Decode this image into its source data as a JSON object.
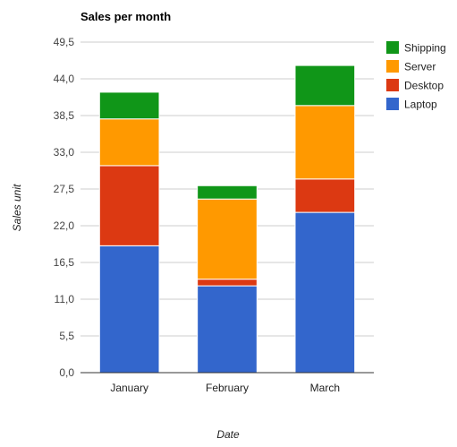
{
  "chart_data": {
    "type": "bar",
    "stacked": true,
    "title": "Sales per month",
    "xlabel": "Date",
    "ylabel": "Sales unit",
    "categories": [
      "January",
      "February",
      "March"
    ],
    "ylim": [
      0,
      49.5
    ],
    "yticks": [
      "0,0",
      "5,5",
      "11,0",
      "16,5",
      "22,0",
      "27,5",
      "33,0",
      "38,5",
      "44,0",
      "49,5"
    ],
    "ytick_values": [
      0,
      5.5,
      11,
      16.5,
      22,
      27.5,
      33,
      38.5,
      44,
      49.5
    ],
    "grid": true,
    "legend_position": "right",
    "series": [
      {
        "name": "Laptop",
        "color": "#3366cc",
        "values": [
          19,
          13,
          24
        ]
      },
      {
        "name": "Desktop",
        "color": "#dc3912",
        "values": [
          12,
          1,
          5
        ]
      },
      {
        "name": "Server",
        "color": "#ff9900",
        "values": [
          7,
          12,
          11
        ]
      },
      {
        "name": "Shipping",
        "color": "#109618",
        "values": [
          4,
          2,
          6
        ]
      }
    ]
  }
}
